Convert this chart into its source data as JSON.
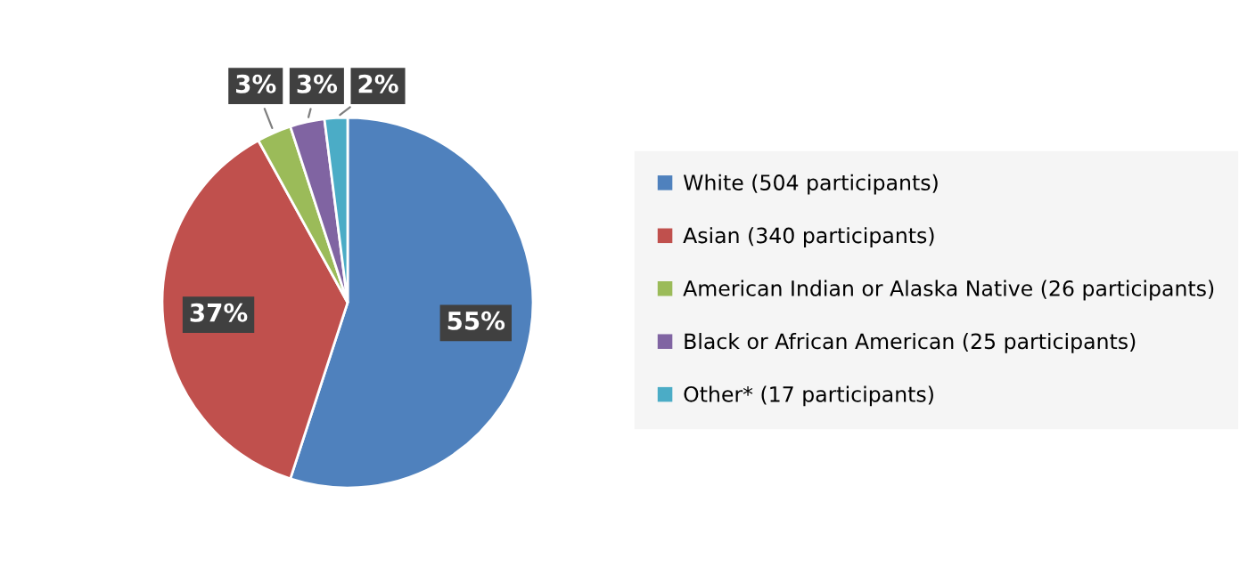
{
  "chart_data": {
    "type": "pie",
    "categories": [
      "White (504 participants)",
      "Asian (340 participants)",
      "American Indian or Alaska Native (26 participants)",
      "Black or African American (25 participants)",
      "Other* (17 participants)"
    ],
    "values": [
      55,
      37,
      3,
      3,
      2
    ],
    "value_labels": [
      "55%",
      "37%",
      "3%",
      "3%",
      "2%"
    ],
    "colors": [
      "#4f81bd",
      "#c0504d",
      "#9bbb59",
      "#8064a2",
      "#4bacc6"
    ],
    "legend": "right"
  }
}
